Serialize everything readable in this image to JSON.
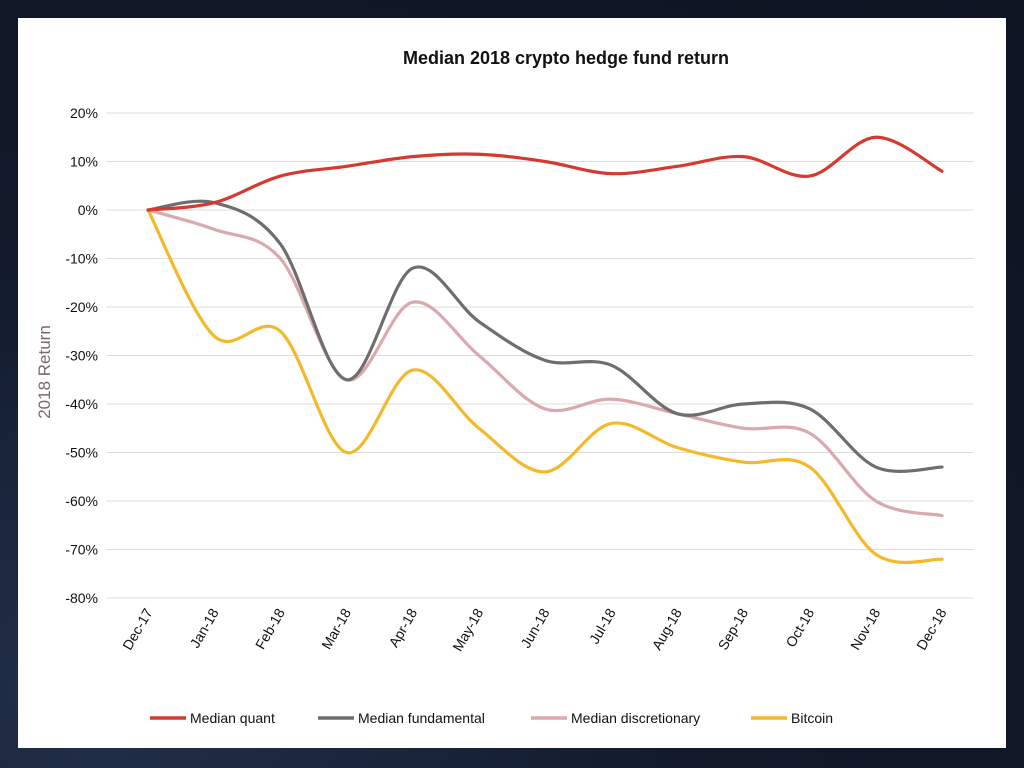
{
  "chart_data": {
    "type": "line",
    "title": "Median 2018 crypto hedge fund return",
    "xlabel": "",
    "ylabel": "2018 Return",
    "ylim": [
      -80,
      20
    ],
    "yticks": [
      20,
      10,
      0,
      -10,
      -20,
      -30,
      -40,
      -50,
      -60,
      -70,
      -80
    ],
    "ytick_labels": [
      "20%",
      "10%",
      "0%",
      "-10%",
      "-20%",
      "-30%",
      "-40%",
      "-50%",
      "-60%",
      "-70%",
      "-80%"
    ],
    "categories": [
      "Dec-17",
      "Jan-18",
      "Feb-18",
      "Mar-18",
      "Apr-18",
      "May-18",
      "Jun-18",
      "Jul-18",
      "Aug-18",
      "Sep-18",
      "Oct-18",
      "Nov-18",
      "Dec-18"
    ],
    "grid": true,
    "legend_position": "bottom",
    "series": [
      {
        "name": "Median quant",
        "color": "#d63a2f",
        "values": [
          0,
          1.5,
          7,
          9,
          11,
          11.5,
          10,
          7.5,
          9,
          11,
          7,
          15,
          8
        ]
      },
      {
        "name": "Median fundamental",
        "color": "#6e6e6e",
        "values": [
          0,
          1.5,
          -7,
          -35,
          -12,
          -23,
          -31,
          -32,
          -42,
          -40,
          -41,
          -53,
          -53
        ]
      },
      {
        "name": "Median discretionary",
        "color": "#d9a9ad",
        "values": [
          0,
          -4,
          -10,
          -35,
          -19,
          -30,
          -41,
          -39,
          -42,
          -45,
          -46,
          -60,
          -63
        ]
      },
      {
        "name": "Bitcoin",
        "color": "#f4b92b",
        "values": [
          0,
          -26,
          -25,
          -50,
          -33,
          -45,
          -54,
          -44,
          -49,
          -52,
          -53,
          -71,
          -72
        ]
      }
    ]
  }
}
